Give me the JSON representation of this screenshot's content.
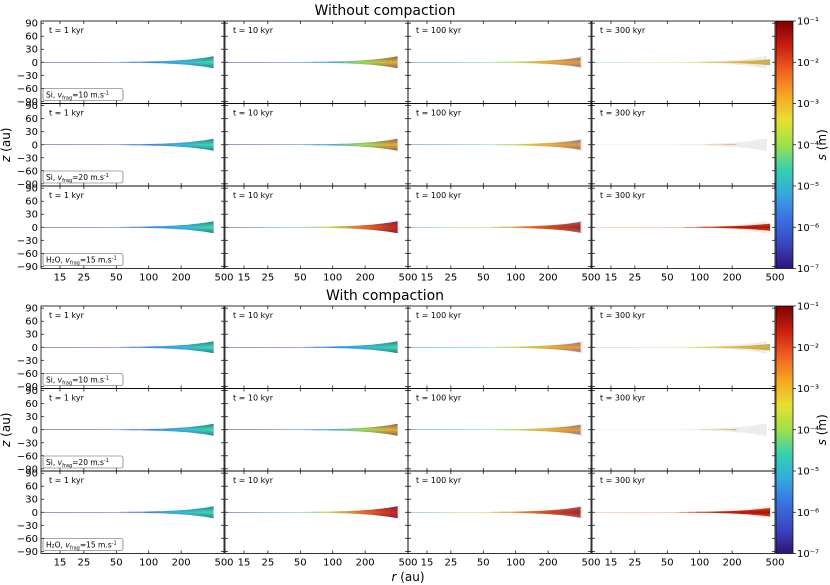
{
  "chart_data": {
    "type": "heatmap",
    "description_kind": "scatter-density grid",
    "sections": [
      {
        "title": "Without compaction",
        "rows": [
          {
            "material": "Si",
            "vfrag": "10",
            "label_prefix": "Si, ",
            "label_suffix": "=10 m.s",
            "panels": [
              {
                "time": "t = 1 kyr",
                "stage": 0,
                "max_r": 400,
                "spread": 1.0
              },
              {
                "time": "t = 10 kyr",
                "stage": 1,
                "max_r": 400,
                "spread": 1.0
              },
              {
                "time": "t = 100 kyr",
                "stage": 2,
                "max_r": 400,
                "spread": 0.8
              },
              {
                "time": "t = 300 kyr",
                "stage": 3,
                "max_r": 450,
                "spread": 0.4
              }
            ]
          },
          {
            "material": "Si",
            "vfrag": "20",
            "label_prefix": "Si, ",
            "label_suffix": "=20 m.s",
            "panels": [
              {
                "time": "t = 1 kyr",
                "stage": 0,
                "max_r": 400,
                "spread": 1.0
              },
              {
                "time": "t = 10 kyr",
                "stage": 1,
                "max_r": 400,
                "spread": 1.0
              },
              {
                "time": "t = 100 kyr",
                "stage": 2,
                "max_r": 400,
                "spread": 0.8
              },
              {
                "time": "t = 300 kyr",
                "stage": 4,
                "max_r": 220,
                "spread": 0.12
              }
            ]
          },
          {
            "material": "H2O",
            "vfrag": "15",
            "label_prefix": "H₂O, ",
            "label_suffix": "=15 m.s",
            "panels": [
              {
                "time": "t = 1 kyr",
                "stage": 0,
                "max_r": 400,
                "spread": 1.0
              },
              {
                "time": "t = 10 kyr",
                "stage": 5,
                "max_r": 400,
                "spread": 1.0
              },
              {
                "time": "t = 100 kyr",
                "stage": 6,
                "max_r": 400,
                "spread": 0.9
              },
              {
                "time": "t = 300 kyr",
                "stage": 7,
                "max_r": 450,
                "spread": 0.5
              }
            ]
          }
        ]
      },
      {
        "title": "With compaction",
        "rows": [
          {
            "material": "Si",
            "vfrag": "10",
            "label_prefix": "Si, ",
            "label_suffix": "=10 m.s",
            "panels": [
              {
                "time": "t = 1 kyr",
                "stage": 0,
                "max_r": 400,
                "spread": 1.0
              },
              {
                "time": "t = 10 kyr",
                "stage": 0,
                "max_r": 400,
                "spread": 1.0
              },
              {
                "time": "t = 100 kyr",
                "stage": 2,
                "max_r": 400,
                "spread": 0.8
              },
              {
                "time": "t = 300 kyr",
                "stage": 3,
                "max_r": 450,
                "spread": 0.45
              }
            ]
          },
          {
            "material": "Si",
            "vfrag": "20",
            "label_prefix": "Si, ",
            "label_suffix": "=20 m.s",
            "panels": [
              {
                "time": "t = 1 kyr",
                "stage": 0,
                "max_r": 400,
                "spread": 1.0
              },
              {
                "time": "t = 10 kyr",
                "stage": 1,
                "max_r": 400,
                "spread": 1.0
              },
              {
                "time": "t = 100 kyr",
                "stage": 2,
                "max_r": 400,
                "spread": 0.8
              },
              {
                "time": "t = 300 kyr",
                "stage": 4,
                "max_r": 220,
                "spread": 0.15
              }
            ]
          },
          {
            "material": "H2O",
            "vfrag": "15",
            "label_prefix": "H₂O, ",
            "label_suffix": "=15 m.s",
            "panels": [
              {
                "time": "t = 1 kyr",
                "stage": 0,
                "max_r": 400,
                "spread": 1.0
              },
              {
                "time": "t = 10 kyr",
                "stage": 5,
                "max_r": 400,
                "spread": 1.0
              },
              {
                "time": "t = 100 kyr",
                "stage": 6,
                "max_r": 400,
                "spread": 0.9
              },
              {
                "time": "t = 300 kyr",
                "stage": 7,
                "max_r": 450,
                "spread": 0.6
              }
            ]
          }
        ]
      }
    ],
    "x_axis": {
      "label_var": "r",
      "label_unit": " (au)",
      "scale": "log",
      "range": [
        10,
        500
      ],
      "ticks": [
        "15",
        "25",
        "50",
        "100",
        "200",
        "500"
      ],
      "tick_values": [
        15,
        25,
        50,
        100,
        200,
        500
      ]
    },
    "y_axis": {
      "label_var": "z",
      "label_unit": " (au)",
      "range": [
        -95,
        95
      ],
      "ticks": [
        "90",
        "60",
        "30",
        "0",
        "−30",
        "−60",
        "−90"
      ],
      "tick_values": [
        90,
        60,
        30,
        0,
        -30,
        -60,
        -90
      ]
    },
    "colorbar": {
      "label_var": "s",
      "label_unit": " (m)",
      "scale": "log",
      "range_exponents": [
        -7,
        -1
      ],
      "tick_labels": [
        "10⁻¹",
        "10⁻²",
        "10⁻³",
        "10⁻⁴",
        "10⁻⁵",
        "10⁻⁶",
        "10⁻⁷"
      ],
      "tick_exponents": [
        -1,
        -2,
        -3,
        -4,
        -5,
        -6,
        -7
      ]
    },
    "subscript_frag": "frag",
    "exp_minus_one": "-1",
    "var_v": "v"
  },
  "colors": {
    "bg_envelope": "#ececec",
    "stages": [
      [
        "#2d2a8f",
        "#3c45c0",
        "#3e7fe6",
        "#35b8e0",
        "#3ae0a0"
      ],
      [
        "#2d2a8f",
        "#3c5ad0",
        "#3fa7e8",
        "#9de055",
        "#f5a623"
      ],
      [
        "#3c6ad8",
        "#39c6d6",
        "#b8e04a",
        "#f0b330",
        "#f09230"
      ],
      [
        "#39c6d6",
        "#9ee04a",
        "#c8e030",
        "#f0b330",
        "#f5a623"
      ],
      [
        "#f5a623",
        "#f09230",
        "#f09230",
        "#f0a030",
        "#f07f20"
      ],
      [
        "#2d2a8f",
        "#3fa7e8",
        "#b8e04a",
        "#f07020",
        "#d02010"
      ],
      [
        "#3fa7e8",
        "#b8e04a",
        "#f09230",
        "#e04a10",
        "#c01808"
      ],
      [
        "#f07020",
        "#e05515",
        "#d03010",
        "#c01808",
        "#a81008"
      ]
    ]
  }
}
